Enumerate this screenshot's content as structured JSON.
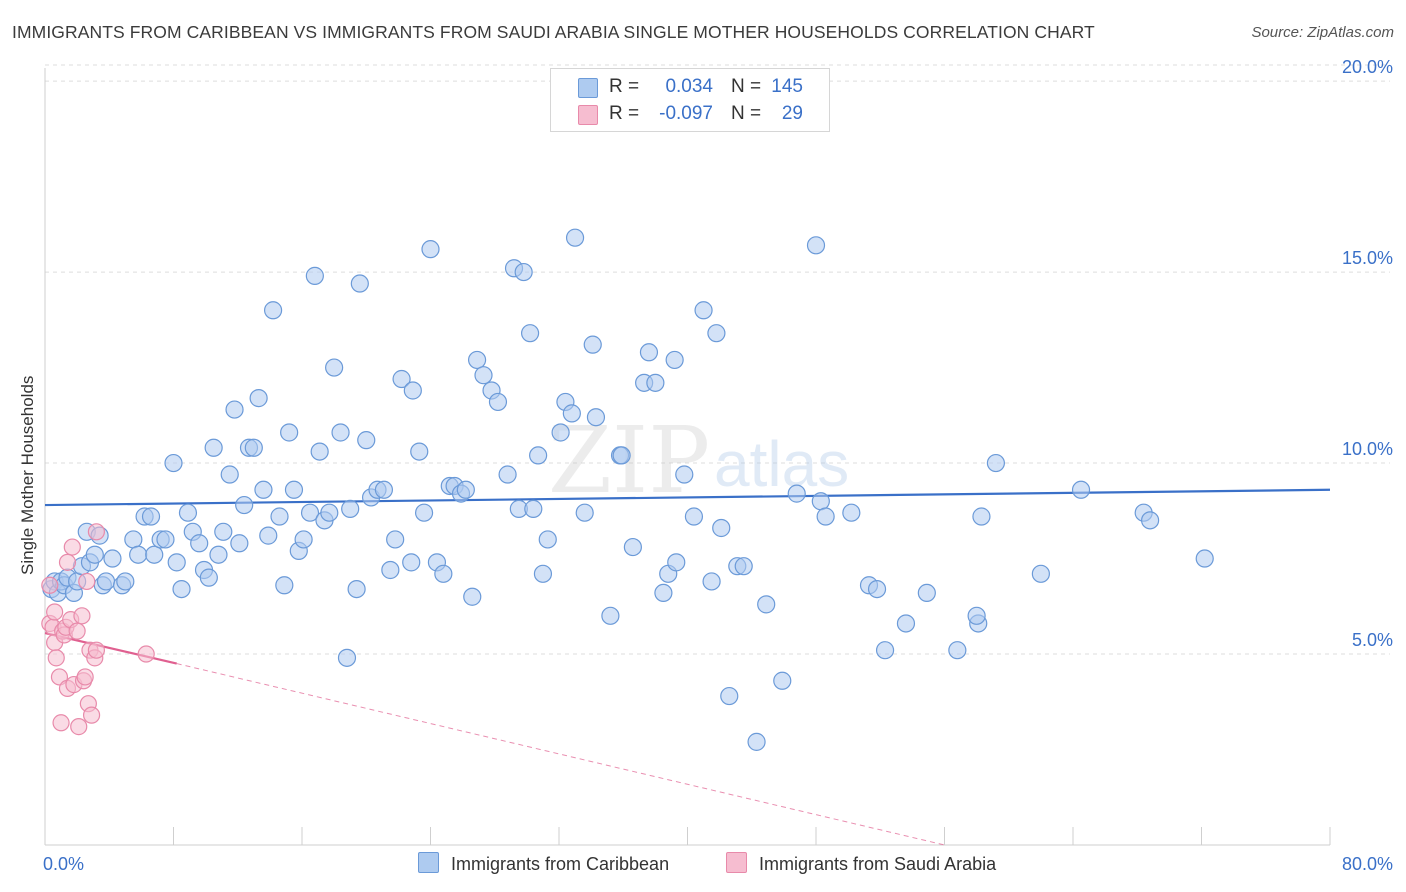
{
  "title": "IMMIGRANTS FROM CARIBBEAN VS IMMIGRANTS FROM SAUDI ARABIA SINGLE MOTHER HOUSEHOLDS CORRELATION CHART",
  "source": "Source: ZipAtlas.com",
  "watermark": {
    "zip": "ZIP",
    "atlas": "atlas"
  },
  "legend": {
    "r_label": "R =",
    "n_label": "N =",
    "rows": [
      {
        "r": "0.034",
        "n": "145"
      },
      {
        "r": "-0.097",
        "n": "29"
      }
    ]
  },
  "colors": {
    "caribbean_fill": "#aecbf0",
    "caribbean_stroke": "#6b9ad8",
    "caribbean_line": "#3a70c8",
    "saudi_fill": "#f6bdd0",
    "saudi_stroke": "#e88aaa",
    "saudi_line": "#e06090",
    "axis_text": "#3a70c8",
    "grid": "#dddddd"
  },
  "chart_data": {
    "type": "scatter",
    "xlabel": "",
    "ylabel": "Single Mother Households",
    "xlim": [
      0,
      80
    ],
    "ylim": [
      0,
      20.5
    ],
    "x_tick_labels": [
      "0.0%",
      "80.0%"
    ],
    "y_ticks": [
      5,
      10,
      15,
      20
    ],
    "y_tick_labels": [
      "5.0%",
      "10.0%",
      "15.0%",
      "20.0%"
    ],
    "grid": true,
    "legend_position": "top-center",
    "series": [
      {
        "name": "Immigrants from Caribbean",
        "trend": {
          "x": [
            0,
            80
          ],
          "y": [
            8.9,
            9.3
          ]
        },
        "points": [
          [
            0.4,
            6.7
          ],
          [
            0.6,
            6.9
          ],
          [
            0.8,
            6.6
          ],
          [
            1.0,
            6.9
          ],
          [
            1.2,
            6.8
          ],
          [
            1.4,
            7.0
          ],
          [
            1.8,
            6.6
          ],
          [
            2.0,
            6.9
          ],
          [
            2.3,
            7.3
          ],
          [
            2.6,
            8.2
          ],
          [
            2.8,
            7.4
          ],
          [
            3.1,
            7.6
          ],
          [
            3.4,
            8.1
          ],
          [
            3.6,
            6.8
          ],
          [
            3.8,
            6.9
          ],
          [
            4.2,
            7.5
          ],
          [
            4.8,
            6.8
          ],
          [
            5.0,
            6.9
          ],
          [
            5.5,
            8.0
          ],
          [
            5.8,
            7.6
          ],
          [
            6.2,
            8.6
          ],
          [
            6.6,
            8.6
          ],
          [
            6.8,
            7.6
          ],
          [
            7.2,
            8.0
          ],
          [
            7.5,
            8.0
          ],
          [
            8.0,
            10.0
          ],
          [
            8.2,
            7.4
          ],
          [
            8.5,
            6.7
          ],
          [
            8.9,
            8.7
          ],
          [
            9.2,
            8.2
          ],
          [
            9.6,
            7.9
          ],
          [
            9.9,
            7.2
          ],
          [
            10.2,
            7.0
          ],
          [
            10.5,
            10.4
          ],
          [
            10.8,
            7.6
          ],
          [
            11.1,
            8.2
          ],
          [
            11.5,
            9.7
          ],
          [
            11.8,
            11.4
          ],
          [
            12.1,
            7.9
          ],
          [
            12.4,
            8.9
          ],
          [
            12.7,
            10.4
          ],
          [
            13.0,
            10.4
          ],
          [
            13.3,
            11.7
          ],
          [
            13.6,
            9.3
          ],
          [
            13.9,
            8.1
          ],
          [
            14.2,
            14.0
          ],
          [
            14.6,
            8.6
          ],
          [
            14.9,
            6.8
          ],
          [
            15.2,
            10.8
          ],
          [
            15.5,
            9.3
          ],
          [
            15.8,
            7.7
          ],
          [
            16.1,
            8.0
          ],
          [
            16.5,
            8.7
          ],
          [
            16.8,
            14.9
          ],
          [
            17.1,
            10.3
          ],
          [
            17.4,
            8.5
          ],
          [
            17.7,
            8.7
          ],
          [
            18.0,
            12.5
          ],
          [
            18.4,
            10.8
          ],
          [
            18.8,
            4.9
          ],
          [
            19.0,
            8.8
          ],
          [
            19.4,
            6.7
          ],
          [
            19.6,
            14.7
          ],
          [
            20.0,
            10.6
          ],
          [
            20.3,
            9.1
          ],
          [
            20.7,
            9.3
          ],
          [
            21.1,
            9.3
          ],
          [
            21.5,
            7.2
          ],
          [
            21.8,
            8.0
          ],
          [
            22.2,
            12.2
          ],
          [
            22.8,
            7.4
          ],
          [
            22.9,
            11.9
          ],
          [
            23.3,
            10.3
          ],
          [
            23.6,
            8.7
          ],
          [
            24.0,
            15.6
          ],
          [
            24.4,
            7.4
          ],
          [
            24.8,
            7.1
          ],
          [
            25.2,
            9.4
          ],
          [
            25.5,
            9.4
          ],
          [
            25.9,
            9.2
          ],
          [
            26.2,
            9.3
          ],
          [
            26.6,
            6.5
          ],
          [
            26.9,
            12.7
          ],
          [
            27.3,
            12.3
          ],
          [
            27.8,
            11.9
          ],
          [
            28.2,
            11.6
          ],
          [
            28.8,
            9.7
          ],
          [
            29.2,
            15.1
          ],
          [
            29.5,
            8.8
          ],
          [
            29.8,
            15.0
          ],
          [
            30.2,
            13.4
          ],
          [
            30.4,
            8.8
          ],
          [
            30.7,
            10.2
          ],
          [
            31.0,
            7.1
          ],
          [
            31.3,
            8.0
          ],
          [
            32.1,
            10.8
          ],
          [
            32.4,
            11.6
          ],
          [
            32.8,
            11.3
          ],
          [
            33.0,
            15.9
          ],
          [
            33.6,
            8.7
          ],
          [
            34.1,
            13.1
          ],
          [
            34.3,
            11.2
          ],
          [
            35.2,
            6.0
          ],
          [
            35.8,
            10.2
          ],
          [
            35.9,
            10.2
          ],
          [
            36.6,
            7.8
          ],
          [
            37.3,
            12.1
          ],
          [
            37.6,
            12.9
          ],
          [
            38.0,
            12.1
          ],
          [
            38.5,
            6.6
          ],
          [
            38.8,
            7.1
          ],
          [
            39.2,
            12.7
          ],
          [
            39.3,
            7.4
          ],
          [
            39.8,
            9.7
          ],
          [
            40.4,
            8.6
          ],
          [
            41.0,
            14.0
          ],
          [
            41.5,
            6.9
          ],
          [
            41.8,
            13.4
          ],
          [
            42.1,
            8.3
          ],
          [
            42.6,
            3.9
          ],
          [
            43.1,
            7.3
          ],
          [
            43.5,
            7.3
          ],
          [
            44.9,
            6.3
          ],
          [
            45.9,
            4.3
          ],
          [
            46.8,
            9.2
          ],
          [
            48.0,
            15.7
          ],
          [
            48.3,
            9.0
          ],
          [
            48.6,
            8.6
          ],
          [
            50.2,
            8.7
          ],
          [
            51.3,
            6.8
          ],
          [
            51.8,
            6.7
          ],
          [
            53.6,
            5.8
          ],
          [
            52.3,
            5.1
          ],
          [
            54.9,
            6.6
          ],
          [
            56.8,
            5.1
          ],
          [
            58.1,
            5.8
          ],
          [
            59.2,
            10.0
          ],
          [
            58.3,
            8.6
          ],
          [
            62.0,
            7.1
          ],
          [
            64.5,
            9.3
          ],
          [
            68.4,
            8.7
          ],
          [
            68.8,
            8.5
          ],
          [
            72.2,
            7.5
          ],
          [
            44.3,
            2.7
          ],
          [
            58.0,
            6.0
          ]
        ]
      },
      {
        "name": "Immigrants from Saudi Arabia",
        "trend": {
          "x": [
            0,
            8.2
          ],
          "y": [
            5.55,
            4.75
          ]
        },
        "trend_extension": {
          "x": [
            8.2,
            56
          ],
          "y": [
            4.75,
            0
          ]
        },
        "points": [
          [
            0.3,
            6.8
          ],
          [
            0.3,
            5.8
          ],
          [
            0.5,
            5.7
          ],
          [
            0.6,
            5.3
          ],
          [
            0.6,
            6.1
          ],
          [
            0.7,
            4.9
          ],
          [
            0.9,
            4.4
          ],
          [
            1.0,
            3.2
          ],
          [
            1.1,
            5.6
          ],
          [
            1.2,
            5.5
          ],
          [
            1.3,
            5.7
          ],
          [
            1.4,
            4.1
          ],
          [
            1.4,
            7.4
          ],
          [
            1.6,
            5.9
          ],
          [
            1.7,
            7.8
          ],
          [
            1.8,
            4.2
          ],
          [
            2.0,
            5.6
          ],
          [
            2.1,
            3.1
          ],
          [
            2.3,
            6.0
          ],
          [
            2.4,
            4.3
          ],
          [
            2.5,
            4.4
          ],
          [
            2.6,
            6.9
          ],
          [
            2.7,
            3.7
          ],
          [
            2.8,
            5.1
          ],
          [
            2.9,
            3.4
          ],
          [
            3.1,
            4.9
          ],
          [
            3.2,
            5.1
          ],
          [
            3.2,
            8.2
          ],
          [
            6.3,
            5.0
          ]
        ]
      }
    ]
  }
}
